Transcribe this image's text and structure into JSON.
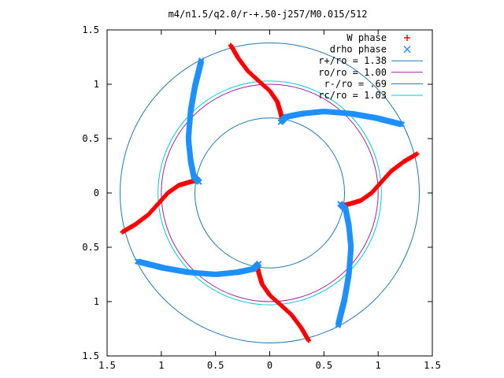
{
  "chart_data": {
    "type": "scatter",
    "title": "m4/n1.5/q2.0/r-+.50-j257/M0.015/512",
    "xlabel": "",
    "ylabel": "",
    "xlim": [
      -1.5,
      1.5
    ],
    "ylim": [
      -1.5,
      1.5
    ],
    "xticks": [
      -1.5,
      -1,
      -0.5,
      0,
      0.5,
      1,
      1.5
    ],
    "yticks": [
      -1.5,
      -1,
      -0.5,
      0,
      0.5,
      1,
      1.5
    ],
    "xtick_labels": [
      "1.5",
      "1",
      "0.5",
      "0",
      "0.5",
      "1",
      "1.5"
    ],
    "ytick_labels": [
      "1.5",
      "1",
      "0.5",
      "0",
      "0.5",
      "1",
      "1.5"
    ],
    "grid": false,
    "legend_position": "top-right",
    "m": 4,
    "series": [
      {
        "name": "W phase",
        "kind": "points",
        "marker": "+",
        "color": "#ff0000",
        "arm": [
          [
            -0.65,
            0.12
          ],
          [
            -0.74,
            0.1
          ],
          [
            -0.84,
            0.07
          ],
          [
            -0.94,
            0.0
          ],
          [
            -1.02,
            -0.09
          ],
          [
            -1.12,
            -0.2
          ],
          [
            -1.24,
            -0.29
          ],
          [
            -1.36,
            -0.36
          ]
        ]
      },
      {
        "name": "drho phase",
        "kind": "points",
        "marker": "x",
        "color": "#1e90ff",
        "arm": [
          [
            -0.65,
            0.1
          ],
          [
            -0.7,
            0.15
          ],
          [
            -0.73,
            0.3
          ],
          [
            -0.75,
            0.5
          ],
          [
            -0.73,
            0.75
          ],
          [
            -0.69,
            0.98
          ],
          [
            -0.63,
            1.22
          ]
        ]
      },
      {
        "name": "r+/ro = 1.38",
        "kind": "circle",
        "radius": 1.38,
        "color": "#1f77b4"
      },
      {
        "name": "ro/ro = 1.00",
        "kind": "circle",
        "radius": 1.0,
        "color": "#a020a0"
      },
      {
        "name": "r-/ro = .69",
        "kind": "circle",
        "radius": 0.69,
        "color": "#1f77b4"
      },
      {
        "name": "rc/ro = 1.03",
        "kind": "circle",
        "radius": 1.03,
        "color": "#00cccc"
      }
    ],
    "legend": [
      {
        "label": "W phase",
        "symbol": "+",
        "color": "#ff0000"
      },
      {
        "label": "drho phase",
        "symbol": "x",
        "color": "#1e90ff"
      },
      {
        "label": "r+/ro = 1.38",
        "symbol": "line",
        "color": "#1f77b4"
      },
      {
        "label": "ro/ro = 1.00",
        "symbol": "line",
        "color": "#a020a0"
      },
      {
        "label": "r-/ro = .69",
        "symbol": "line",
        "color": "#1f77b4"
      },
      {
        "label": "rc/ro = 1.03",
        "symbol": "line",
        "color": "#00cccc"
      }
    ]
  }
}
